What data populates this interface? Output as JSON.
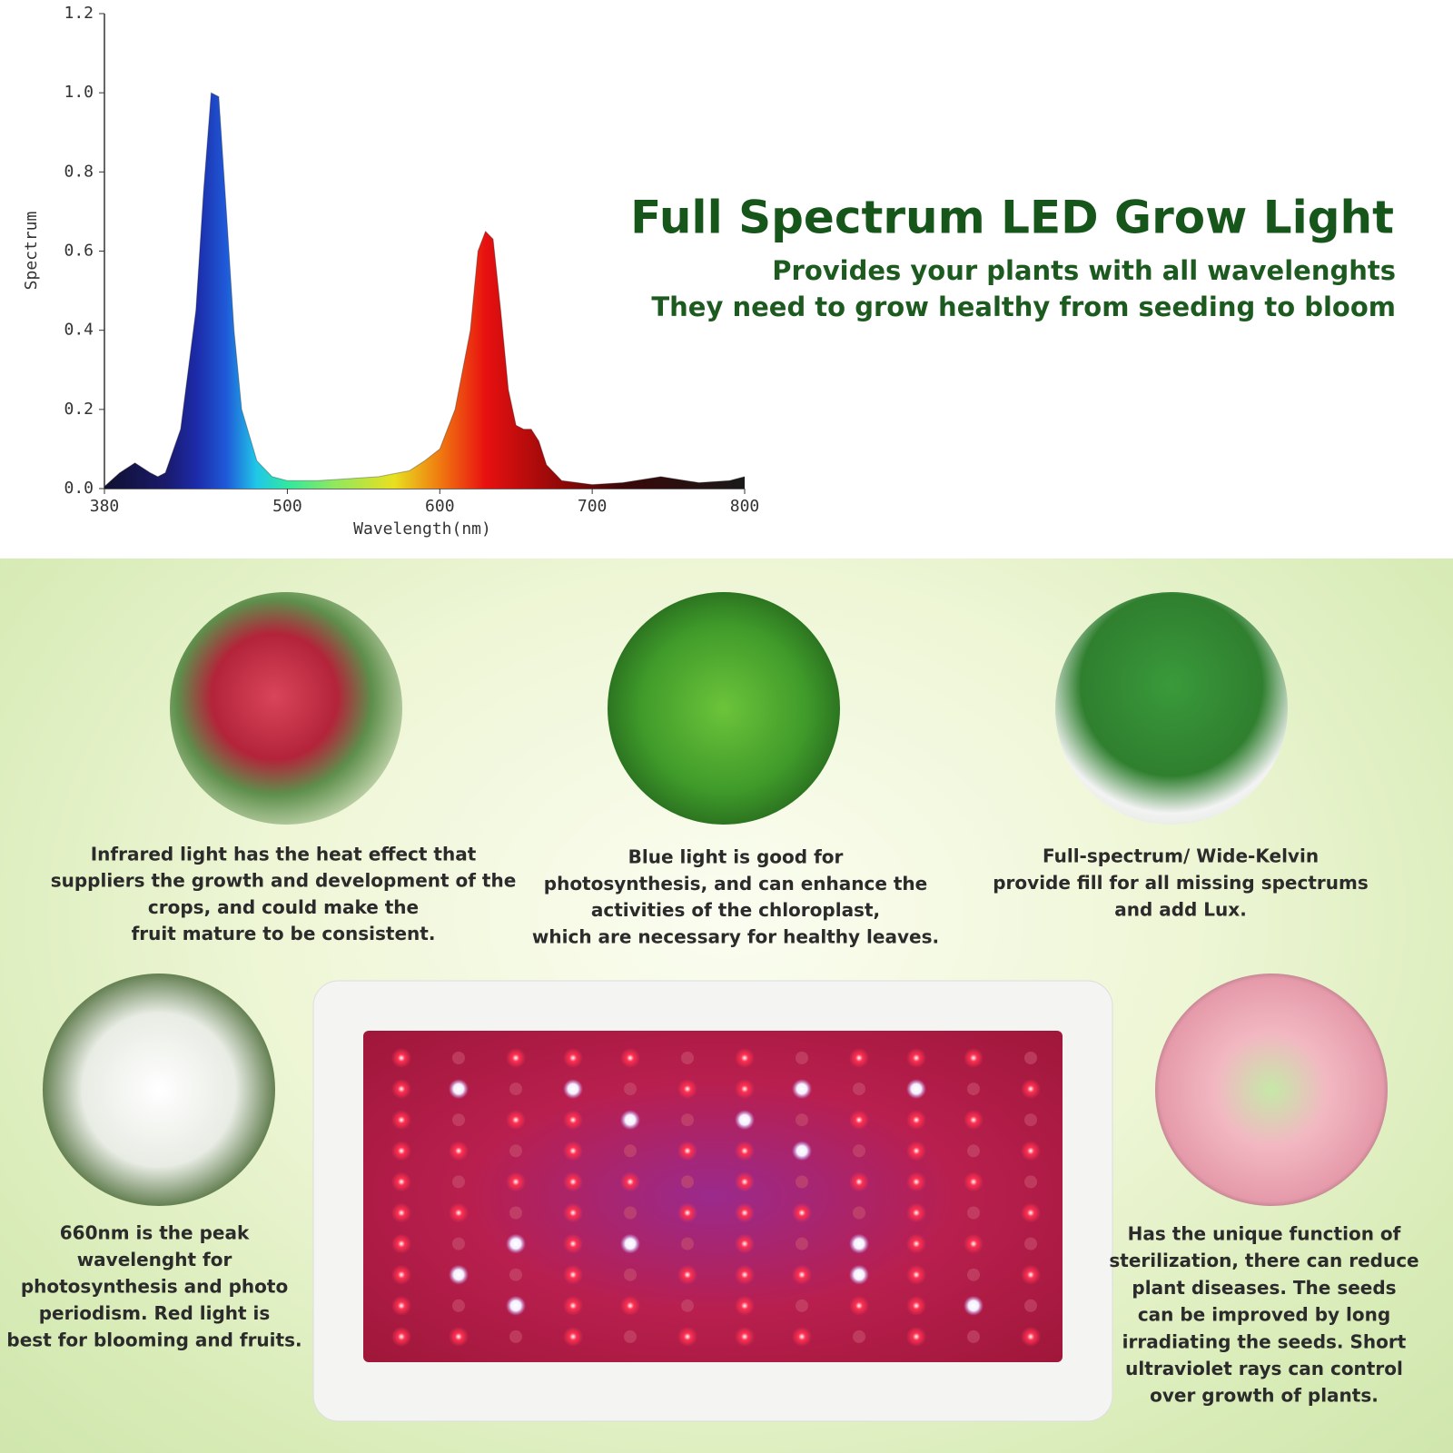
{
  "chart_data": {
    "type": "area",
    "x_label": "Wavelength(nm)",
    "y_label": "Spectrum",
    "x": [
      380,
      390,
      400,
      410,
      415,
      420,
      430,
      440,
      445,
      450,
      455,
      460,
      465,
      470,
      480,
      490,
      500,
      520,
      540,
      560,
      580,
      590,
      600,
      610,
      620,
      625,
      630,
      635,
      640,
      645,
      650,
      655,
      660,
      665,
      670,
      680,
      700,
      720,
      745,
      770,
      790,
      800
    ],
    "values": [
      0.005,
      0.04,
      0.065,
      0.04,
      0.03,
      0.04,
      0.15,
      0.45,
      0.75,
      1.0,
      0.99,
      0.7,
      0.4,
      0.2,
      0.07,
      0.03,
      0.02,
      0.02,
      0.025,
      0.03,
      0.045,
      0.07,
      0.1,
      0.2,
      0.4,
      0.6,
      0.65,
      0.63,
      0.45,
      0.25,
      0.16,
      0.15,
      0.15,
      0.12,
      0.06,
      0.02,
      0.01,
      0.015,
      0.03,
      0.015,
      0.02,
      0.03
    ],
    "xlim": [
      380,
      800
    ],
    "ylim": [
      0,
      1.2
    ],
    "xticks": [
      380,
      500,
      600,
      700,
      800
    ],
    "yticks": [
      {
        "value": 0,
        "label": "0.0"
      },
      0.2,
      0.4,
      0.6,
      0.8,
      {
        "value": 1,
        "label": "1.0"
      },
      1.2
    ],
    "fill_gradient": [
      {
        "x": 380,
        "color": "#101030"
      },
      {
        "x": 420,
        "color": "#1a1a6a"
      },
      {
        "x": 440,
        "color": "#1c2aa8"
      },
      {
        "x": 460,
        "color": "#1f5ad8"
      },
      {
        "x": 480,
        "color": "#20c8e8"
      },
      {
        "x": 500,
        "color": "#30e8a0"
      },
      {
        "x": 530,
        "color": "#8ee860"
      },
      {
        "x": 570,
        "color": "#e8e020"
      },
      {
        "x": 600,
        "color": "#f07a10"
      },
      {
        "x": 630,
        "color": "#e81010"
      },
      {
        "x": 680,
        "color": "#900808"
      },
      {
        "x": 720,
        "color": "#3a0808"
      },
      {
        "x": 800,
        "color": "#1a1a1a"
      }
    ]
  },
  "heading": {
    "title": "Full Spectrum LED Grow Light",
    "lines": [
      "Provides your plants with all wavelenghts",
      "They need to grow healthy from seeding to bloom"
    ]
  },
  "features": [
    {
      "lines": [
        "Infrared light has the heat effect that",
        "suppliers the growth and development of the",
        "crops, and could make the",
        "fruit mature to be consistent."
      ]
    },
    {
      "lines": [
        "Blue light is good for",
        "photosynthesis, and can enhance the",
        "activities of the chloroplast,",
        "which are necessary for healthy leaves."
      ]
    },
    {
      "lines": [
        "Full-spectrum/ Wide-Kelvin",
        "provide fill for all missing spectrums",
        "and add Lux."
      ]
    },
    {
      "lines": [
        "660nm is the peak",
        "wavelenght for",
        "photosynthesis and photo",
        "periodism. Red light is",
        "best for blooming and fruits."
      ]
    },
    {
      "lines": [
        "Has the unique function of",
        "sterilization, there can reduce",
        "plant diseases. The seeds",
        "can be improved by long",
        "irradiating the seeds. Short",
        "ultraviolet rays can control",
        "over growth of plants."
      ]
    }
  ]
}
